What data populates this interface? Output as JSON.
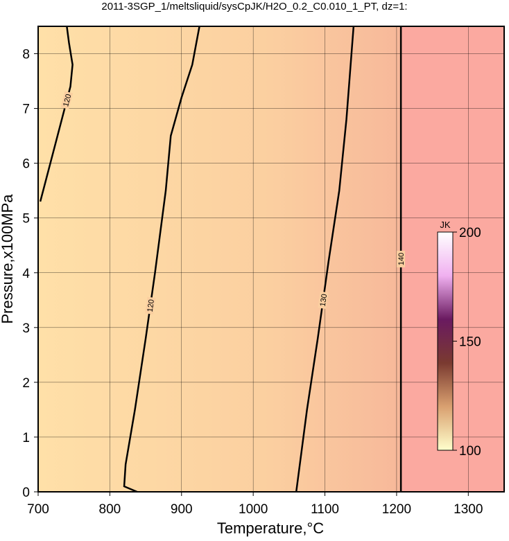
{
  "chart_data": {
    "type": "contour",
    "title": "2011-3SGP_1/meltsliquid/sysCpJK/H2O_0.2_C0.010_1_PT, dz=1:",
    "x_label": "Temperature,°C",
    "y_label": "Pressure,x100MPa",
    "xlim": [
      700,
      1350
    ],
    "ylim": [
      0,
      8.5
    ],
    "xticks": [
      700,
      800,
      900,
      1000,
      1100,
      1200,
      1300
    ],
    "yticks": [
      0,
      1,
      2,
      3,
      4,
      5,
      6,
      7,
      8
    ],
    "grid": true,
    "contours": [
      {
        "level": 120,
        "x": [
          703,
          715,
          725,
          735,
          745,
          748,
          743,
          740
        ],
        "y": [
          5.3,
          5.9,
          6.4,
          6.9,
          7.4,
          7.8,
          8.2,
          8.5
        ]
      },
      {
        "level": 120,
        "x": [
          838,
          820,
          822,
          835,
          850,
          863,
          878,
          885,
          900,
          915,
          925
        ],
        "y": [
          0,
          0.1,
          0.5,
          1.5,
          2.8,
          4,
          5.5,
          6.5,
          7.2,
          7.8,
          8.5
        ]
      },
      {
        "level": 130,
        "x": [
          1060,
          1075,
          1090,
          1105,
          1120,
          1130,
          1140
        ],
        "y": [
          0,
          1.5,
          2.8,
          4.2,
          5.5,
          6.8,
          8.5
        ]
      },
      {
        "level": 140,
        "x": [
          1206,
          1206
        ],
        "y": [
          0,
          8.5
        ]
      }
    ],
    "colorbar": {
      "label": "JK",
      "lim": [
        100,
        200
      ],
      "ticks": [
        100,
        150,
        200
      ],
      "colors": [
        "#ffffcc",
        "#d9a070",
        "#7a3a30",
        "#6a1a60",
        "#f0b0f0",
        "#ffffff"
      ]
    }
  }
}
